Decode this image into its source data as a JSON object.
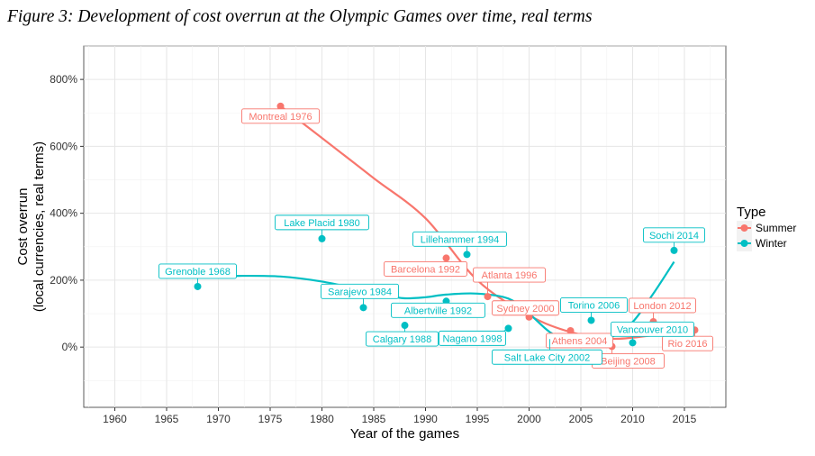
{
  "figure_title": "Figure 3: Development of cost overrun at the Olympic Games over time, real terms",
  "chart_data": {
    "type": "scatter",
    "xlabel": "Year of the games",
    "ylabel_line1": "Cost overrun",
    "ylabel_line2": "(local currencies, real terms)",
    "xlim": [
      1957,
      2019
    ],
    "ylim": [
      -180,
      900
    ],
    "x_ticks": [
      1960,
      1965,
      1970,
      1975,
      1980,
      1985,
      1990,
      1995,
      2000,
      2005,
      2010,
      2015
    ],
    "y_ticks": [
      {
        "value": 0,
        "label": "0%"
      },
      {
        "value": 200,
        "label": "200%"
      },
      {
        "value": 400,
        "label": "400%"
      },
      {
        "value": 600,
        "label": "600%"
      },
      {
        "value": 800,
        "label": "800%"
      }
    ],
    "grid": true,
    "legend": {
      "title": "Type",
      "position": "right",
      "entries": [
        {
          "name": "Summer",
          "color": "#F8766D"
        },
        {
          "name": "Winter",
          "color": "#00BFC4"
        }
      ]
    },
    "series": [
      {
        "name": "Summer",
        "color": "#F8766D",
        "points": [
          {
            "label": "Montreal 1976",
            "x": 1976,
            "y": 720
          },
          {
            "label": "Barcelona 1992",
            "x": 1992,
            "y": 266
          },
          {
            "label": "Atlanta 1996",
            "x": 1996,
            "y": 151
          },
          {
            "label": "Sydney 2000",
            "x": 2000,
            "y": 90
          },
          {
            "label": "Athens 2004",
            "x": 2004,
            "y": 49
          },
          {
            "label": "Beijing 2008",
            "x": 2008,
            "y": 2
          },
          {
            "label": "London 2012",
            "x": 2012,
            "y": 76
          },
          {
            "label": "Rio 2016",
            "x": 2016,
            "y": 51
          }
        ],
        "trend": [
          [
            1976,
            720
          ],
          [
            1980,
            625
          ],
          [
            1985,
            505
          ],
          [
            1990,
            385
          ],
          [
            1995,
            200
          ],
          [
            2000,
            95
          ],
          [
            2004,
            45
          ],
          [
            2008,
            25
          ],
          [
            2012,
            35
          ],
          [
            2016,
            45
          ]
        ]
      },
      {
        "name": "Winter",
        "color": "#00BFC4",
        "points": [
          {
            "label": "Grenoble 1968",
            "x": 1968,
            "y": 181
          },
          {
            "label": "Lake Placid 1980",
            "x": 1980,
            "y": 324
          },
          {
            "label": "Sarajevo 1984",
            "x": 1984,
            "y": 118
          },
          {
            "label": "Calgary 1988",
            "x": 1988,
            "y": 65
          },
          {
            "label": "Albertville 1992",
            "x": 1992,
            "y": 137
          },
          {
            "label": "Lillehammer 1994",
            "x": 1994,
            "y": 277
          },
          {
            "label": "Nagano 1998",
            "x": 1998,
            "y": 56
          },
          {
            "label": "Salt Lake City 2002",
            "x": 2002,
            "y": 24
          },
          {
            "label": "Torino 2006",
            "x": 2006,
            "y": 80
          },
          {
            "label": "Vancouver 2010",
            "x": 2010,
            "y": 13
          },
          {
            "label": "Sochi 2014",
            "x": 2014,
            "y": 289
          }
        ],
        "trend": [
          [
            1968,
            210
          ],
          [
            1972,
            213
          ],
          [
            1976,
            211
          ],
          [
            1980,
            196
          ],
          [
            1984,
            170
          ],
          [
            1986,
            155
          ],
          [
            1988,
            146
          ],
          [
            1990,
            149
          ],
          [
            1992,
            157
          ],
          [
            1995,
            160
          ],
          [
            1998,
            145
          ],
          [
            2000,
            100
          ],
          [
            2002,
            45
          ],
          [
            2004,
            15
          ],
          [
            2006,
            10
          ],
          [
            2008,
            30
          ],
          [
            2010,
            75
          ],
          [
            2012,
            160
          ],
          [
            2014,
            255
          ]
        ]
      }
    ]
  }
}
